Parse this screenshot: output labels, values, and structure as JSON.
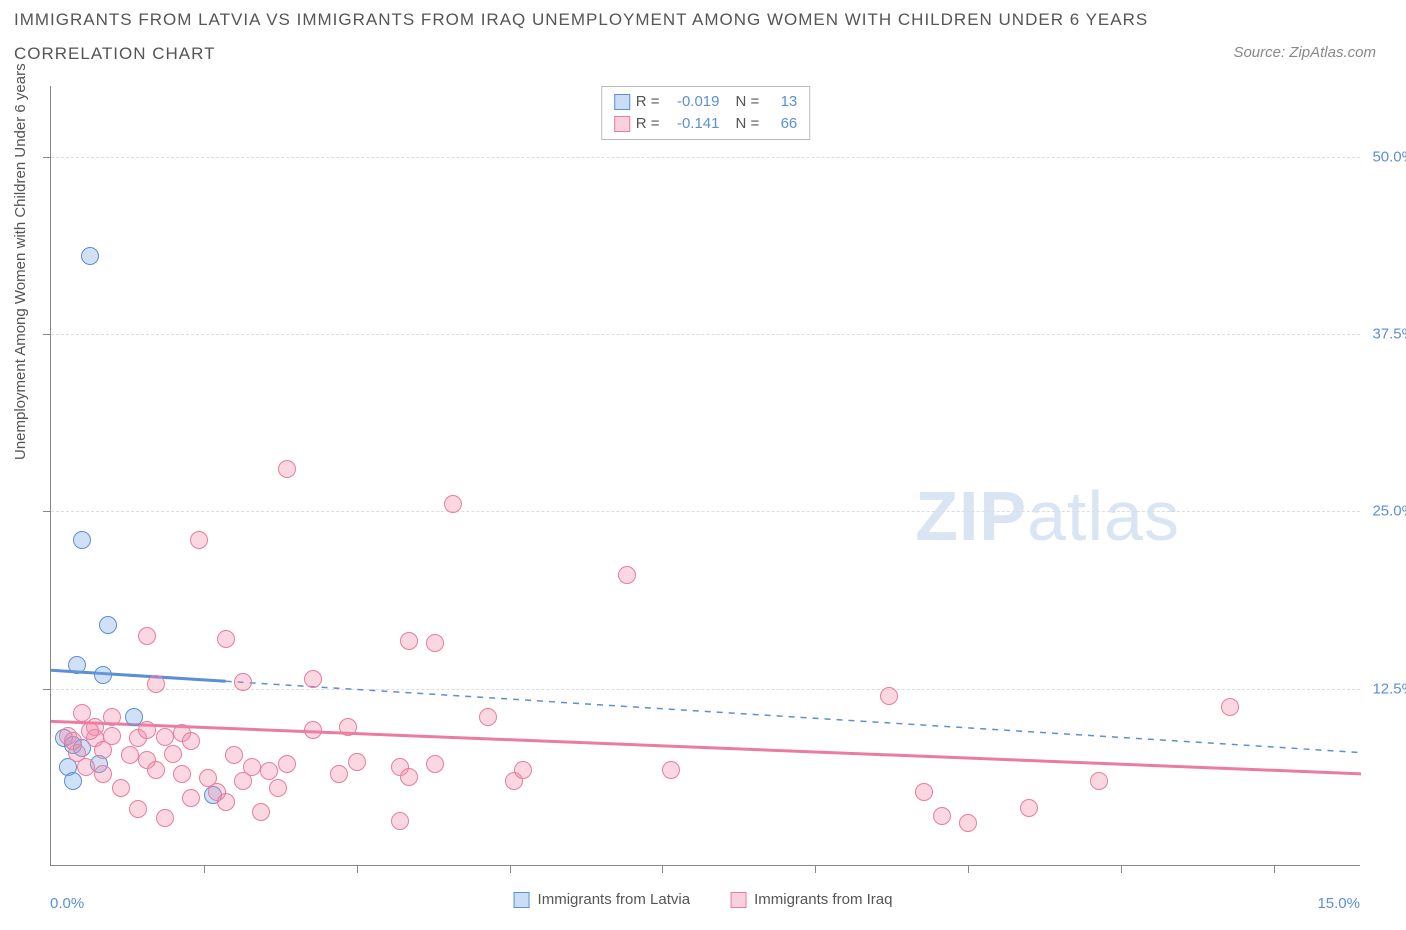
{
  "title_line1": "IMMIGRANTS FROM LATVIA VS IMMIGRANTS FROM IRAQ UNEMPLOYMENT AMONG WOMEN WITH CHILDREN UNDER 6 YEARS",
  "title_line2": "CORRELATION CHART",
  "source_label": "Source: ZipAtlas.com",
  "ylabel": "Unemployment Among Women with Children Under 6 years",
  "watermark_bold": "ZIP",
  "watermark_light": "atlas",
  "chart": {
    "type": "scatter",
    "x_range": [
      0,
      15
    ],
    "y_range": [
      0,
      55
    ],
    "y_ticks": [
      12.5,
      25.0,
      37.5,
      50.0
    ],
    "y_tick_labels": [
      "12.5%",
      "25.0%",
      "37.5%",
      "50.0%"
    ],
    "x_ticks": [
      1.75,
      3.5,
      5.25,
      7.0,
      8.75,
      10.5,
      12.25,
      14.0
    ],
    "x_start_label": "0.0%",
    "x_end_label": "15.0%",
    "grid_color": "#dddddd",
    "axis_color": "#888888",
    "background_color": "#ffffff",
    "series": [
      {
        "name": "Immigrants from Latvia",
        "key": "latvia",
        "fill": "rgba(120,170,230,0.35)",
        "stroke": "#5b8fd6",
        "R": "-0.019",
        "N": "13",
        "trend": {
          "y_at_x0": 13.8,
          "y_at_xmax": 8.0,
          "solid_until_x": 2.0
        },
        "points": [
          [
            0.45,
            43.0
          ],
          [
            0.35,
            23.0
          ],
          [
            0.65,
            17.0
          ],
          [
            0.3,
            14.2
          ],
          [
            0.6,
            13.5
          ],
          [
            0.15,
            9.0
          ],
          [
            0.25,
            8.5
          ],
          [
            0.35,
            8.3
          ],
          [
            0.2,
            7.0
          ],
          [
            0.95,
            10.5
          ],
          [
            0.55,
            7.2
          ],
          [
            0.25,
            6.0
          ],
          [
            1.85,
            5.0
          ]
        ]
      },
      {
        "name": "Immigrants from Iraq",
        "key": "iraq",
        "fill": "rgba(240,140,170,0.35)",
        "stroke": "#e97ca0",
        "R": "-0.141",
        "N": "66",
        "trend": {
          "y_at_x0": 10.2,
          "y_at_xmax": 6.5,
          "solid_until_x": 15.0
        },
        "points": [
          [
            2.7,
            28.0
          ],
          [
            1.7,
            23.0
          ],
          [
            4.6,
            25.5
          ],
          [
            6.6,
            20.5
          ],
          [
            1.1,
            16.2
          ],
          [
            2.0,
            16.0
          ],
          [
            4.4,
            15.7
          ],
          [
            4.1,
            15.9
          ],
          [
            1.2,
            12.8
          ],
          [
            2.2,
            13.0
          ],
          [
            3.0,
            13.2
          ],
          [
            9.6,
            12.0
          ],
          [
            13.5,
            11.2
          ],
          [
            0.35,
            10.8
          ],
          [
            0.7,
            10.5
          ],
          [
            0.5,
            9.8
          ],
          [
            0.5,
            9.0
          ],
          [
            0.7,
            9.2
          ],
          [
            1.0,
            9.0
          ],
          [
            1.1,
            9.6
          ],
          [
            1.3,
            9.1
          ],
          [
            1.5,
            9.4
          ],
          [
            1.6,
            8.8
          ],
          [
            0.3,
            8.0
          ],
          [
            0.6,
            8.2
          ],
          [
            0.9,
            7.8
          ],
          [
            1.1,
            7.5
          ],
          [
            1.4,
            7.9
          ],
          [
            1.2,
            6.8
          ],
          [
            1.5,
            6.5
          ],
          [
            1.8,
            6.2
          ],
          [
            2.1,
            7.8
          ],
          [
            2.3,
            7.0
          ],
          [
            2.5,
            6.7
          ],
          [
            2.2,
            6.0
          ],
          [
            2.6,
            5.5
          ],
          [
            2.7,
            7.2
          ],
          [
            3.0,
            9.6
          ],
          [
            3.3,
            6.5
          ],
          [
            3.4,
            9.8
          ],
          [
            3.5,
            7.3
          ],
          [
            4.0,
            7.0
          ],
          [
            4.1,
            6.3
          ],
          [
            4.4,
            7.2
          ],
          [
            4.0,
            3.2
          ],
          [
            5.0,
            10.5
          ],
          [
            5.3,
            6.0
          ],
          [
            5.4,
            6.8
          ],
          [
            7.1,
            6.8
          ],
          [
            10.0,
            5.2
          ],
          [
            10.2,
            3.5
          ],
          [
            10.5,
            3.0
          ],
          [
            11.2,
            4.1
          ],
          [
            12.0,
            6.0
          ],
          [
            0.4,
            7.0
          ],
          [
            0.6,
            6.5
          ],
          [
            0.2,
            9.2
          ],
          [
            0.8,
            5.5
          ],
          [
            1.0,
            4.0
          ],
          [
            1.3,
            3.4
          ],
          [
            1.6,
            4.8
          ],
          [
            1.9,
            5.2
          ],
          [
            2.0,
            4.5
          ],
          [
            2.4,
            3.8
          ],
          [
            0.25,
            8.8
          ],
          [
            0.45,
            9.5
          ]
        ]
      }
    ]
  },
  "legend_bottom": [
    {
      "swatch": "latvia-sw",
      "label": "Immigrants from Latvia"
    },
    {
      "swatch": "iraq-sw",
      "label": "Immigrants from Iraq"
    }
  ]
}
